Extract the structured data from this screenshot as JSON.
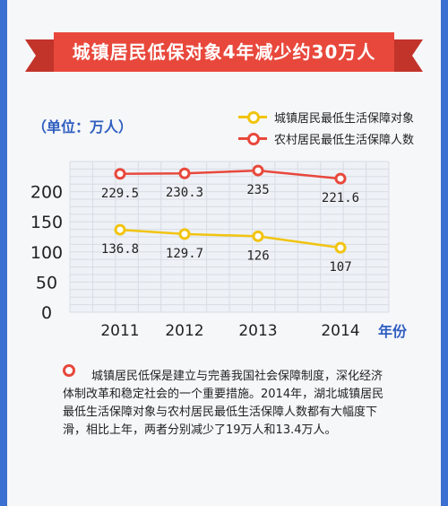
{
  "title": "城镇居民低保对象4年减少约30万人",
  "unit_label": "（单位：万人）",
  "x_axis_unit": "年份",
  "note": "城镇居民低保是建立与完善我国社会保障制度，深化经济体制改革和稳定社会的一个重要措施。2014年，湖北城镇居民最低生活保障对象与农村居民最低生活保障人数都有大幅度下滑，相比上年，两者分别减少了19万人和13.4万人。",
  "colors": {
    "urban": "#f1c40f",
    "rural": "#e8483c",
    "grid": "#d8dce4",
    "accent": "#2f5fc0"
  },
  "chart_data": {
    "type": "line",
    "categories": [
      "2011",
      "2012",
      "2013",
      "2014"
    ],
    "series": [
      {
        "name": "城镇居民最低生活保障对象",
        "values": [
          136.8,
          129.7,
          126,
          107
        ],
        "labels": [
          "136.8",
          "129.7",
          "126",
          "107"
        ]
      },
      {
        "name": "农村居民最低生活保障人数",
        "values": [
          229.5,
          230.3,
          235,
          221.6
        ],
        "labels": [
          "229.5",
          "230.3",
          "235",
          "221.6"
        ]
      }
    ],
    "yticks": [
      "0",
      "50",
      "100",
      "150",
      "200"
    ],
    "ylim": [
      0,
      250
    ],
    "grid": true,
    "legend": "top-right"
  }
}
